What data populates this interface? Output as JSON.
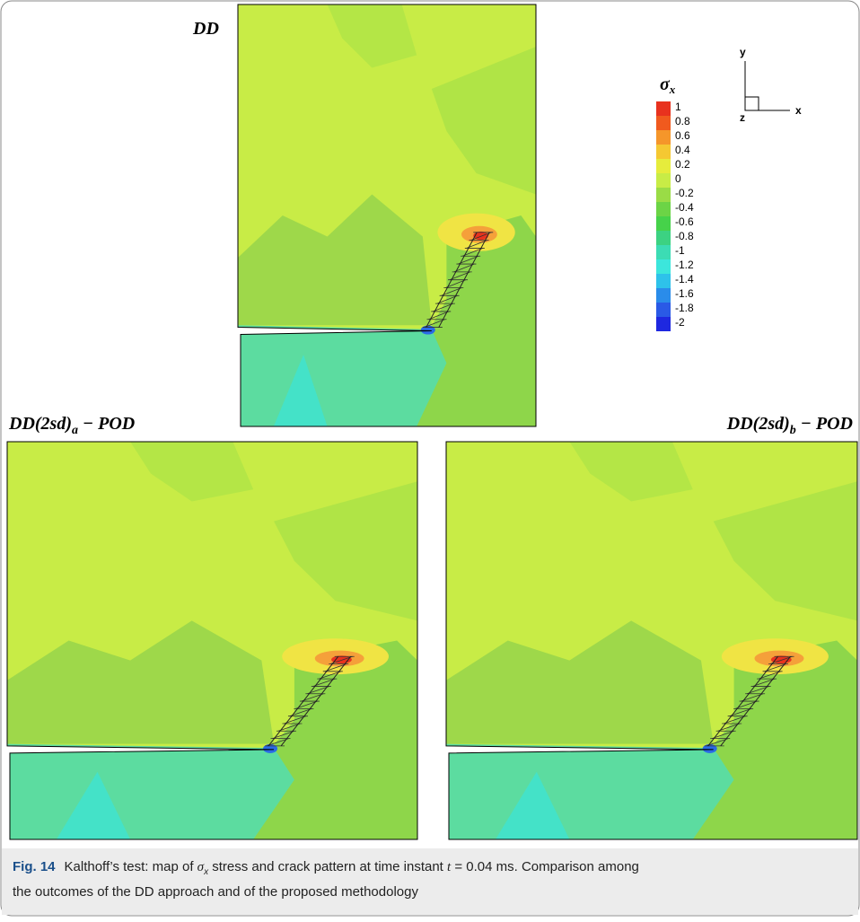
{
  "panels": [
    {
      "label": "DD"
    },
    {
      "label": "DD(2sd)",
      "sub": "a",
      "suffix": " − POD"
    },
    {
      "label": "DD(2sd)",
      "sub": "b",
      "suffix": " − POD"
    }
  ],
  "colorbar": {
    "symbol": "σ",
    "sub": "x",
    "ticks": [
      1,
      0.8,
      0.6,
      0.4,
      0.2,
      0,
      -0.2,
      -0.4,
      -0.6,
      -0.8,
      -1,
      -1.2,
      -1.4,
      -1.6,
      -1.8,
      -2
    ],
    "colors": [
      "#e8321e",
      "#f05a1e",
      "#f5962a",
      "#f5c832",
      "#e6ec3c",
      "#c8ec46",
      "#9adc46",
      "#6cd446",
      "#46d24a",
      "#3cd282",
      "#3cdcb4",
      "#3ce6dc",
      "#2ec2ea",
      "#2a8cea",
      "#2a5ae6",
      "#1e28e0"
    ]
  },
  "triad": {
    "y": "y",
    "x": "x",
    "z": "z"
  },
  "caption": {
    "label": "Fig. 14",
    "before": "Kalthoff’s test: map of ",
    "symbol": "σ",
    "sub": "x",
    "after": " stress and crack pattern at time instant ",
    "t": "t",
    "eq": " = 0.04 ms. Comparison among",
    "line2": "the outcomes of the DD approach and of the proposed methodology"
  }
}
